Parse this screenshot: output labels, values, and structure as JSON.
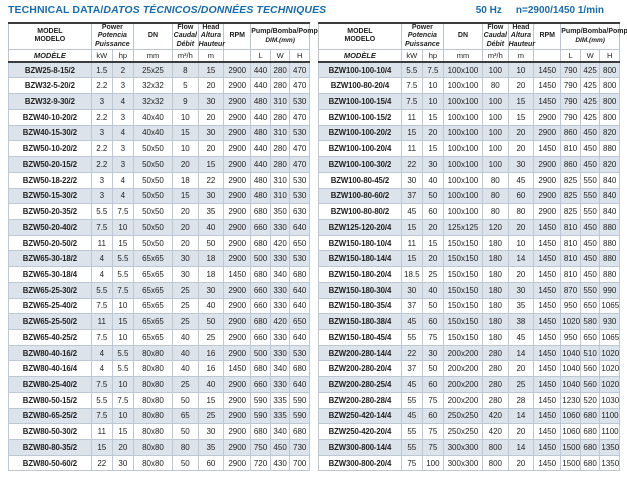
{
  "title": {
    "main": "TECHNICAL DATA/",
    "translated": "DATOS TÉCNICOS/DONNÉES TECHNIQUES"
  },
  "frequency_note": {
    "hz": "50 Hz",
    "speed": "n=2900/1450 1/min"
  },
  "colors": {
    "title_blue": "#1a6ba8",
    "row_shade": "#dce3eb",
    "border_light": "#b9c6d2",
    "border_dark": "#3c3c3c",
    "text": "#222222"
  },
  "header": {
    "model": [
      "MODEL",
      "MODELO",
      "MODÈLE"
    ],
    "power": [
      "Power",
      "Potencia",
      "Puissance"
    ],
    "dn": "DN",
    "flow": [
      "Flow",
      "Caudal",
      "Débit"
    ],
    "head": [
      "Head",
      "Altura",
      "Hauteur"
    ],
    "rpm": "RPM",
    "pump_dim": [
      "Pump/Bomba/Pompe",
      "DIM.(mm)"
    ],
    "units": {
      "kw": "kW",
      "hp": "hp",
      "mm": "mm",
      "flow": "m³/h",
      "head": "m",
      "l": "L",
      "w": "W",
      "h": "H"
    }
  },
  "left_table": {
    "rows": [
      [
        "BZW25-8-15/2",
        "1.5",
        "2",
        "25x25",
        "8",
        "15",
        "2900",
        "440",
        "280",
        "470"
      ],
      [
        "BZW32-5-20/2",
        "2.2",
        "3",
        "32x32",
        "5",
        "20",
        "2900",
        "440",
        "280",
        "470"
      ],
      [
        "BZW32-9-30/2",
        "3",
        "4",
        "32x32",
        "9",
        "30",
        "2900",
        "480",
        "310",
        "530"
      ],
      [
        "BZW40-10-20/2",
        "2.2",
        "3",
        "40x40",
        "10",
        "20",
        "2900",
        "440",
        "280",
        "470"
      ],
      [
        "BZW40-15-30/2",
        "3",
        "4",
        "40x40",
        "15",
        "30",
        "2900",
        "480",
        "310",
        "530"
      ],
      [
        "BZW50-10-20/2",
        "2.2",
        "3",
        "50x50",
        "10",
        "20",
        "2900",
        "440",
        "280",
        "470"
      ],
      [
        "BZW50-20-15/2",
        "2.2",
        "3",
        "50x50",
        "20",
        "15",
        "2900",
        "440",
        "280",
        "470"
      ],
      [
        "BZW50-18-22/2",
        "3",
        "4",
        "50x50",
        "18",
        "22",
        "2900",
        "480",
        "310",
        "530"
      ],
      [
        "BZW50-15-30/2",
        "3",
        "4",
        "50x50",
        "15",
        "30",
        "2900",
        "480",
        "310",
        "530"
      ],
      [
        "BZW50-20-35/2",
        "5.5",
        "7.5",
        "50x50",
        "20",
        "35",
        "2900",
        "680",
        "350",
        "630"
      ],
      [
        "BZW50-20-40/2",
        "7.5",
        "10",
        "50x50",
        "20",
        "40",
        "2900",
        "660",
        "330",
        "640"
      ],
      [
        "BZW50-20-50/2",
        "11",
        "15",
        "50x50",
        "20",
        "50",
        "2900",
        "680",
        "420",
        "650"
      ],
      [
        "BZW65-30-18/2",
        "4",
        "5.5",
        "65x65",
        "30",
        "18",
        "2900",
        "500",
        "330",
        "530"
      ],
      [
        "BZW65-30-18/4",
        "4",
        "5.5",
        "65x65",
        "30",
        "18",
        "1450",
        "680",
        "340",
        "680"
      ],
      [
        "BZW65-25-30/2",
        "5.5",
        "7.5",
        "65x65",
        "25",
        "30",
        "2900",
        "660",
        "330",
        "640"
      ],
      [
        "BZW65-25-40/2",
        "7.5",
        "10",
        "65x65",
        "25",
        "40",
        "2900",
        "660",
        "330",
        "640"
      ],
      [
        "BZW65-25-50/2",
        "11",
        "15",
        "65x65",
        "25",
        "50",
        "2900",
        "680",
        "420",
        "650"
      ],
      [
        "BZW65-40-25/2",
        "7.5",
        "10",
        "65x65",
        "40",
        "25",
        "2900",
        "660",
        "330",
        "640"
      ],
      [
        "BZW80-40-16/2",
        "4",
        "5.5",
        "80x80",
        "40",
        "16",
        "2900",
        "500",
        "330",
        "530"
      ],
      [
        "BZW80-40-16/4",
        "4",
        "5.5",
        "80x80",
        "40",
        "16",
        "1450",
        "680",
        "340",
        "680"
      ],
      [
        "BZW80-25-40/2",
        "7.5",
        "10",
        "80x80",
        "25",
        "40",
        "2900",
        "660",
        "330",
        "640"
      ],
      [
        "BZW80-50-15/2",
        "5.5",
        "7.5",
        "80x80",
        "50",
        "15",
        "2900",
        "590",
        "335",
        "590"
      ],
      [
        "BZW80-65-25/2",
        "7.5",
        "10",
        "80x80",
        "65",
        "25",
        "2900",
        "590",
        "335",
        "590"
      ],
      [
        "BZW80-50-30/2",
        "11",
        "15",
        "80x80",
        "50",
        "30",
        "2900",
        "680",
        "340",
        "680"
      ],
      [
        "BZW80-80-35/2",
        "15",
        "20",
        "80x80",
        "80",
        "35",
        "2900",
        "750",
        "450",
        "730"
      ],
      [
        "BZW80-50-60/2",
        "22",
        "30",
        "80x80",
        "50",
        "60",
        "2900",
        "720",
        "430",
        "700"
      ]
    ]
  },
  "right_table": {
    "rows": [
      [
        "BZW100-100-10/4",
        "5.5",
        "7.5",
        "100x100",
        "100",
        "10",
        "1450",
        "790",
        "425",
        "800"
      ],
      [
        "BZW100-80-20/4",
        "7.5",
        "10",
        "100x100",
        "80",
        "20",
        "1450",
        "790",
        "425",
        "800"
      ],
      [
        "BZW100-100-15/4",
        "7.5",
        "10",
        "100x100",
        "100",
        "15",
        "1450",
        "790",
        "425",
        "800"
      ],
      [
        "BZW100-100-15/2",
        "11",
        "15",
        "100x100",
        "100",
        "15",
        "2900",
        "790",
        "425",
        "800"
      ],
      [
        "BZW100-100-20/2",
        "15",
        "20",
        "100x100",
        "100",
        "20",
        "2900",
        "860",
        "450",
        "820"
      ],
      [
        "BZW100-100-20/4",
        "11",
        "15",
        "100x100",
        "100",
        "20",
        "1450",
        "810",
        "450",
        "880"
      ],
      [
        "BZW100-100-30/2",
        "22",
        "30",
        "100x100",
        "100",
        "30",
        "2900",
        "860",
        "450",
        "820"
      ],
      [
        "BZW100-80-45/2",
        "30",
        "40",
        "100x100",
        "80",
        "45",
        "2900",
        "825",
        "550",
        "840"
      ],
      [
        "BZW100-80-60/2",
        "37",
        "50",
        "100x100",
        "80",
        "60",
        "2900",
        "825",
        "550",
        "840"
      ],
      [
        "BZW100-80-80/2",
        "45",
        "60",
        "100x100",
        "80",
        "80",
        "2900",
        "825",
        "550",
        "840"
      ],
      [
        "BZW125-120-20/4",
        "15",
        "20",
        "125x125",
        "120",
        "20",
        "1450",
        "810",
        "450",
        "880"
      ],
      [
        "BZW150-180-10/4",
        "11",
        "15",
        "150x150",
        "180",
        "10",
        "1450",
        "810",
        "450",
        "880"
      ],
      [
        "BZW150-180-14/4",
        "15",
        "20",
        "150x150",
        "180",
        "14",
        "1450",
        "810",
        "450",
        "880"
      ],
      [
        "BZW150-180-20/4",
        "18.5",
        "25",
        "150x150",
        "180",
        "20",
        "1450",
        "810",
        "450",
        "880"
      ],
      [
        "BZW150-180-30/4",
        "30",
        "40",
        "150x150",
        "180",
        "30",
        "1450",
        "870",
        "550",
        "990"
      ],
      [
        "BZW150-180-35/4",
        "37",
        "50",
        "150x150",
        "180",
        "35",
        "1450",
        "950",
        "650",
        "1065"
      ],
      [
        "BZW150-180-38/4",
        "45",
        "60",
        "150x150",
        "180",
        "38",
        "1450",
        "1020",
        "580",
        "930"
      ],
      [
        "BZW150-180-45/4",
        "55",
        "75",
        "150x150",
        "180",
        "45",
        "1450",
        "950",
        "650",
        "1065"
      ],
      [
        "BZW200-280-14/4",
        "22",
        "30",
        "200x200",
        "280",
        "14",
        "1450",
        "1040",
        "510",
        "1020"
      ],
      [
        "BZW200-280-20/4",
        "37",
        "50",
        "200x200",
        "280",
        "20",
        "1450",
        "1040",
        "560",
        "1020"
      ],
      [
        "BZW200-280-25/4",
        "45",
        "60",
        "200x200",
        "280",
        "25",
        "1450",
        "1040",
        "560",
        "1020"
      ],
      [
        "BZW200-280-28/4",
        "55",
        "75",
        "200x200",
        "280",
        "28",
        "1450",
        "1230",
        "520",
        "1030"
      ],
      [
        "BZW250-420-14/4",
        "45",
        "60",
        "250x250",
        "420",
        "14",
        "1450",
        "1060",
        "680",
        "1100"
      ],
      [
        "BZW250-420-20/4",
        "55",
        "75",
        "250x250",
        "420",
        "20",
        "1450",
        "1060",
        "680",
        "1100"
      ],
      [
        "BZW300-800-14/4",
        "55",
        "75",
        "300x300",
        "800",
        "14",
        "1450",
        "1500",
        "680",
        "1350"
      ],
      [
        "BZW300-800-20/4",
        "75",
        "100",
        "300x300",
        "800",
        "20",
        "1450",
        "1500",
        "680",
        "1350"
      ]
    ]
  }
}
